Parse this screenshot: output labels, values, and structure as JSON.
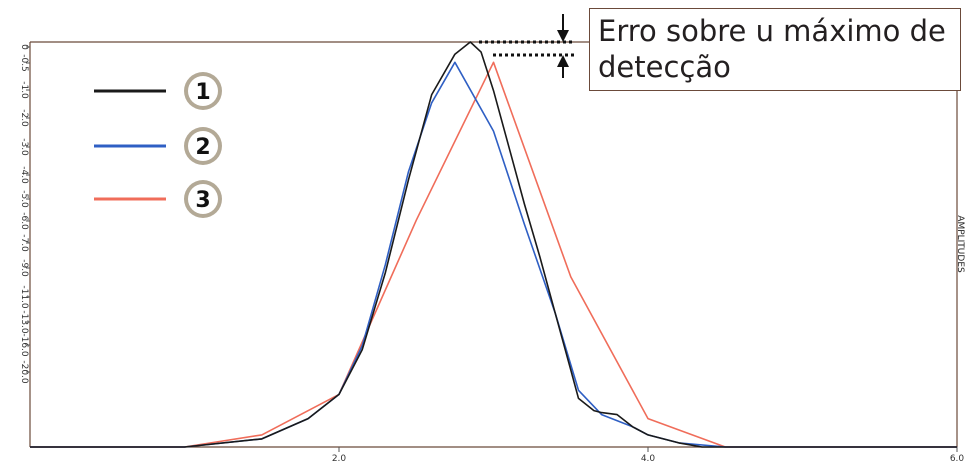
{
  "chart_data": {
    "type": "line",
    "xlabel": "",
    "ylabel": "AMPLITUDES",
    "xlim": [
      0,
      6
    ],
    "x_ticks": [
      "2.0",
      "4.0",
      "6.0"
    ],
    "x_tick_values": [
      2,
      4,
      6
    ],
    "y_ticks": [
      "0",
      "-0.5",
      "-1.0",
      "-2.0",
      "-3.0",
      "-4.0",
      "-5.0",
      "-6.0",
      "-7.0",
      "-9.0",
      "-11.0",
      "-13.0",
      "-16.0",
      "-20.0"
    ],
    "legend": {
      "placement": "top-left",
      "labels": [
        "1",
        "2",
        "3"
      ]
    },
    "series": [
      {
        "name": "1",
        "color": "#1a1a1a",
        "x": [
          0,
          1.0,
          1.5,
          1.8,
          2.0,
          2.15,
          2.3,
          2.45,
          2.6,
          2.75,
          2.85,
          2.92,
          3.0,
          3.1,
          3.2,
          3.3,
          3.4,
          3.5,
          3.55,
          3.65,
          3.7,
          3.8,
          3.9,
          4.0,
          4.1,
          4.2,
          4.35,
          4.5,
          5.0,
          6.0
        ],
        "y": [
          0.0,
          0.0,
          0.02,
          0.07,
          0.13,
          0.24,
          0.43,
          0.66,
          0.87,
          0.97,
          1.0,
          0.975,
          0.88,
          0.74,
          0.6,
          0.47,
          0.33,
          0.19,
          0.12,
          0.09,
          0.085,
          0.08,
          0.05,
          0.03,
          0.02,
          0.01,
          0.0,
          0.0,
          0.0,
          0.0
        ]
      },
      {
        "name": "2",
        "color": "#2f5fc4",
        "x": [
          0,
          1.0,
          1.5,
          1.8,
          2.0,
          2.15,
          2.3,
          2.45,
          2.6,
          2.75,
          3.0,
          3.2,
          3.4,
          3.55,
          3.7,
          3.9,
          4.0,
          4.2,
          4.5,
          5.0,
          6.0
        ],
        "y": [
          0.0,
          0.0,
          0.02,
          0.07,
          0.13,
          0.25,
          0.45,
          0.68,
          0.85,
          0.95,
          0.78,
          0.55,
          0.33,
          0.14,
          0.08,
          0.05,
          0.03,
          0.01,
          0.0,
          0.0,
          0.0
        ]
      },
      {
        "name": "3",
        "color": "#f06d5a",
        "x": [
          0,
          1.0,
          1.5,
          2.0,
          2.5,
          3.0,
          3.5,
          4.0,
          4.5,
          5.0,
          6.0
        ],
        "y": [
          0.0,
          0.0,
          0.03,
          0.13,
          0.56,
          0.95,
          0.42,
          0.07,
          0.0,
          0.0,
          0.0
        ]
      }
    ]
  },
  "annotation": {
    "line1": "Erro sobre u máximo de",
    "line2": "detecção"
  }
}
